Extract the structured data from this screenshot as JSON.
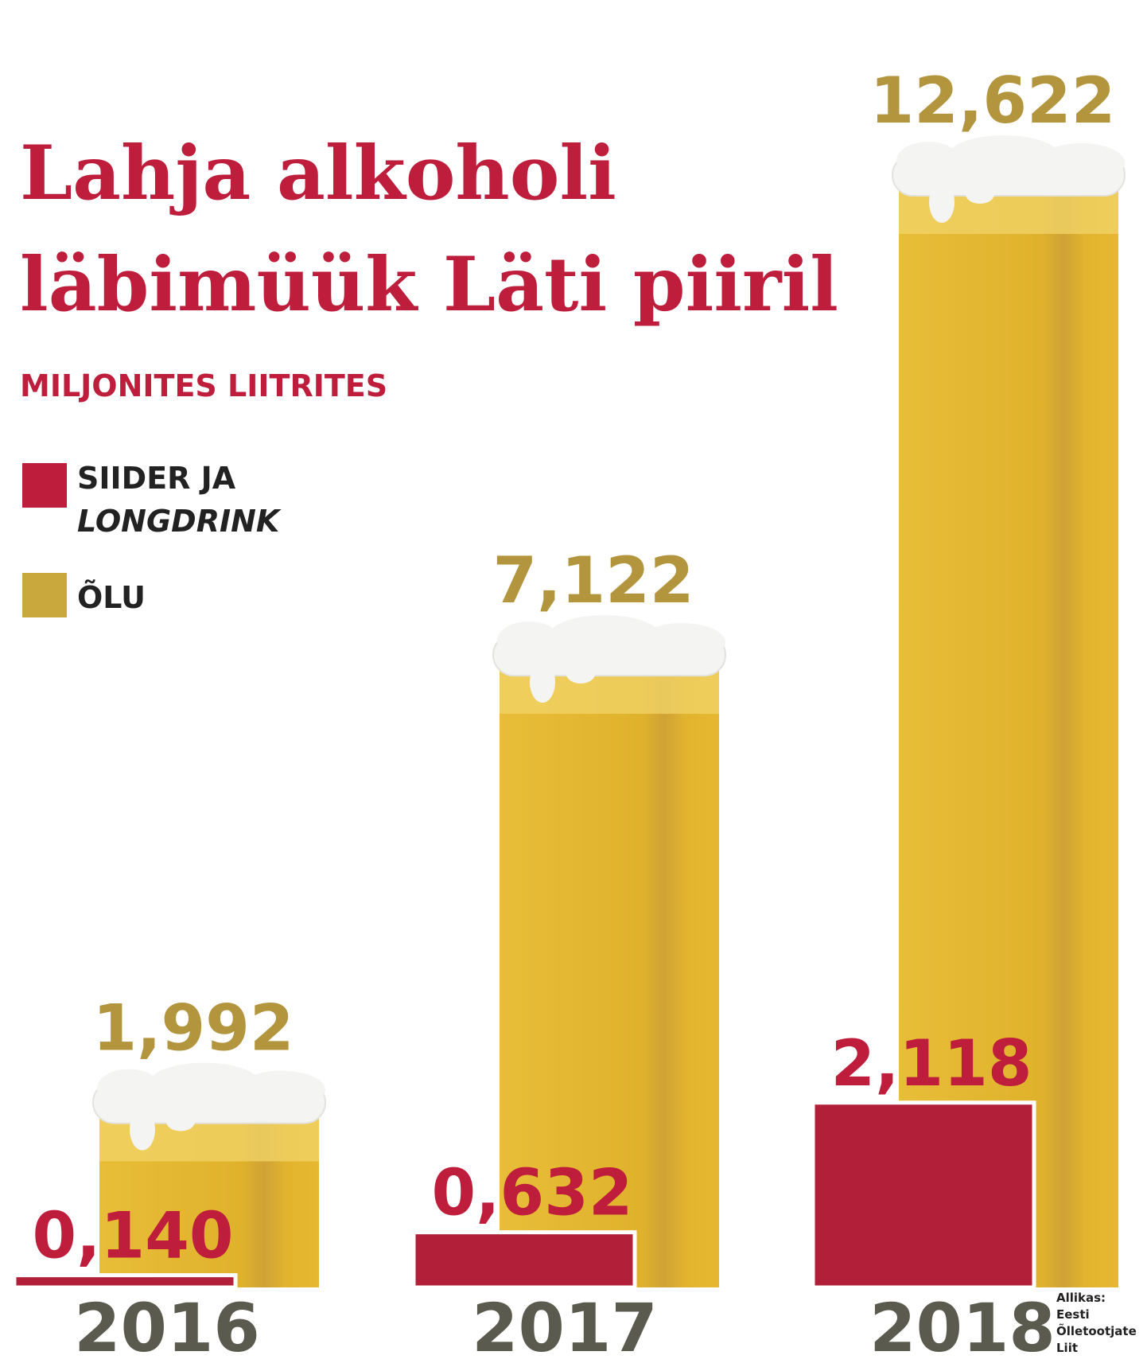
{
  "title_line1": "Lahja alkoholi",
  "title_line2": "läbimüük Läti piiril",
  "subtitle": "MILJONITES LIITRITES",
  "legend": [
    {
      "label_line1": "SIIDER JA",
      "label_line2": "LONGDRINK",
      "color": "#be1e3c"
    },
    {
      "label_line1": "ÕLU",
      "label_line2": "",
      "color": "#c9a93e"
    }
  ],
  "source": [
    "Allikas:",
    "Eesti",
    "Õlletootjate",
    "Liit"
  ],
  "colors": {
    "beer": "#e3b52f",
    "beer_light": "#f2d46a",
    "foam": "#f4f4f2",
    "cider": "#b21f38",
    "beer_label": "#b3953e",
    "cider_label": "#be1e3c",
    "year": "#5a5a4e"
  },
  "chart_data": {
    "type": "bar",
    "categories": [
      "2016",
      "2017",
      "2018"
    ],
    "series": [
      {
        "name": "SIIDER JA LONGDRINK",
        "values": [
          0.14,
          0.632,
          2.118
        ],
        "labels": [
          "0,140",
          "0,632",
          "2,118"
        ]
      },
      {
        "name": "ÕLU",
        "values": [
          1.992,
          7.122,
          12.622
        ],
        "labels": [
          "1,992",
          "7,122",
          "12,622"
        ]
      }
    ],
    "unit": "MILJONITES LIITRITES",
    "grid": false,
    "legend_position": "left"
  }
}
